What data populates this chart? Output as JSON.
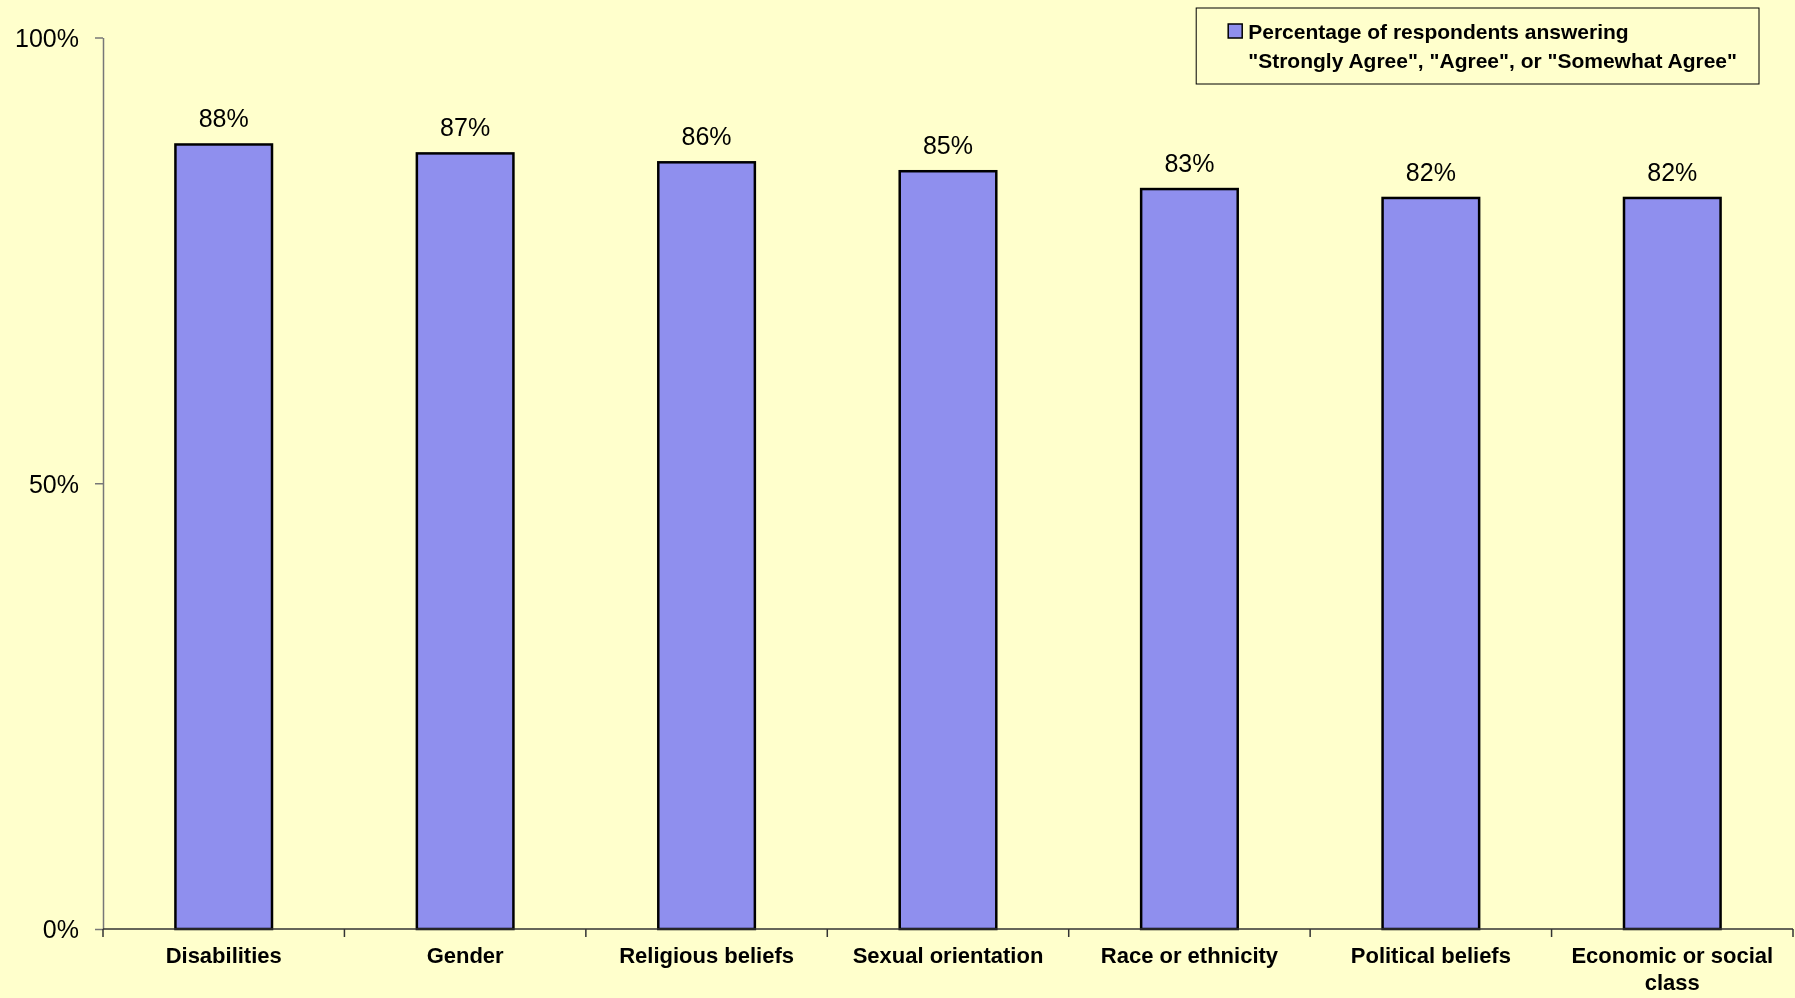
{
  "chart_data": {
    "type": "bar",
    "categories": [
      "Disabilities",
      "Gender",
      "Religious beliefs",
      "Sexual orientation",
      "Race or ethnicity",
      "Political beliefs",
      "Economic or social class"
    ],
    "series": [
      {
        "name": "Percentage of respondents answering \"Strongly Agree\", \"Agree\", or \"Somewhat Agree\"",
        "color": "#8f8fee",
        "values": [
          88,
          87,
          86,
          85,
          83,
          82,
          82
        ],
        "value_labels": [
          "88%",
          "87%",
          "86%",
          "85%",
          "83%",
          "82%",
          "82%"
        ]
      }
    ],
    "ylim": [
      0,
      100
    ],
    "yticks": [
      {
        "value": 0,
        "label": "0%"
      },
      {
        "value": 50,
        "label": "50%"
      },
      {
        "value": 100,
        "label": "100%"
      }
    ],
    "grid": false,
    "legend": "top right"
  }
}
